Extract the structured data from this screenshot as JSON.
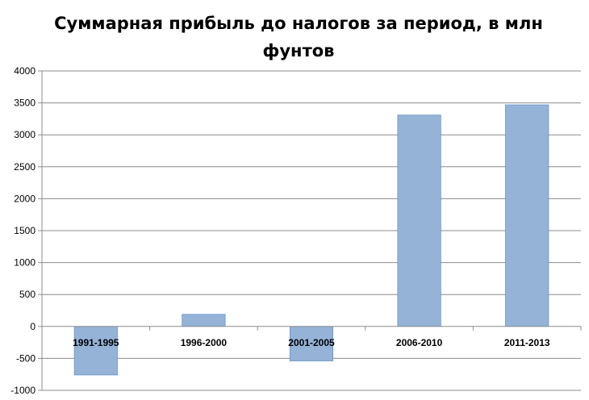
{
  "chart_data": {
    "type": "bar",
    "title": "Суммарная прибыль до налогов за период, в млн фунтов",
    "categories": [
      "1991-1995",
      "1996-2000",
      "2001-2005",
      "2006-2010",
      "2011-2013"
    ],
    "values": [
      -760,
      190,
      -540,
      3310,
      3470
    ],
    "ylim": [
      -1000,
      4000
    ],
    "yticks": [
      -1000,
      -500,
      0,
      500,
      1000,
      1500,
      2000,
      2500,
      3000,
      3500,
      4000
    ],
    "grid": true,
    "legend": "none",
    "bar_color": "#95B3D7",
    "bar_edge_color": "#4F81BD"
  }
}
